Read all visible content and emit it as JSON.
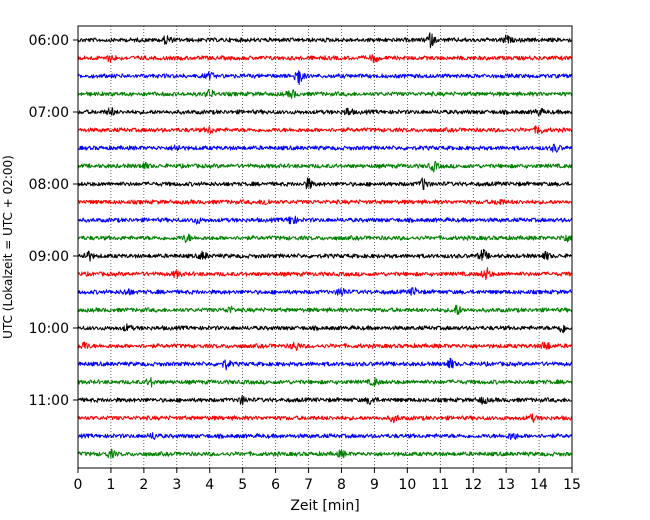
{
  "chart_data": {
    "type": "line",
    "title": "",
    "xlabel": "Zeit  [min]",
    "ylabel": "UTC (Lokalzeit = UTC + 02:00)",
    "xlim": [
      0,
      15
    ],
    "x_ticks": [
      "0",
      "1",
      "2",
      "3",
      "4",
      "5",
      "6",
      "7",
      "8",
      "9",
      "10",
      "11",
      "12",
      "13",
      "14",
      "15"
    ],
    "y_tick_labels": [
      "06:00",
      "07:00",
      "08:00",
      "09:00",
      "10:00",
      "11:00"
    ],
    "grid": "vertical dotted at each minute",
    "trace_interval_minutes": 15,
    "first_trace_utc": "06:00",
    "traces": [
      {
        "utc": "06:00",
        "color": "#000000",
        "bursts": [
          [
            2.7,
            1.2
          ],
          [
            10.7,
            1.8
          ],
          [
            13.0,
            1.0
          ]
        ]
      },
      {
        "utc": "06:15",
        "color": "#ff0000",
        "bursts": [
          [
            1.0,
            0.9
          ],
          [
            9.0,
            1.0
          ]
        ]
      },
      {
        "utc": "06:30",
        "color": "#0000ff",
        "bursts": [
          [
            6.7,
            2.6
          ],
          [
            4.0,
            0.8
          ]
        ]
      },
      {
        "utc": "06:45",
        "color": "#008000",
        "bursts": [
          [
            4.0,
            1.0
          ],
          [
            6.5,
            1.0
          ]
        ]
      },
      {
        "utc": "07:00",
        "color": "#000000",
        "bursts": [
          [
            1.0,
            1.0
          ],
          [
            8.2,
            1.0
          ],
          [
            14.0,
            0.8
          ]
        ]
      },
      {
        "utc": "07:15",
        "color": "#ff0000",
        "bursts": [
          [
            4.0,
            0.8
          ],
          [
            14.0,
            1.2
          ]
        ]
      },
      {
        "utc": "07:30",
        "color": "#0000ff",
        "bursts": [
          [
            3.0,
            0.8
          ],
          [
            14.5,
            1.0
          ]
        ]
      },
      {
        "utc": "07:45",
        "color": "#008000",
        "bursts": [
          [
            10.8,
            1.2
          ],
          [
            2.0,
            0.8
          ]
        ]
      },
      {
        "utc": "08:00",
        "color": "#000000",
        "bursts": [
          [
            7.0,
            1.4
          ],
          [
            10.5,
            1.6
          ]
        ]
      },
      {
        "utc": "08:15",
        "color": "#ff0000",
        "bursts": [
          [
            5.7,
            0.8
          ],
          [
            12.8,
            0.8
          ]
        ]
      },
      {
        "utc": "08:30",
        "color": "#0000ff",
        "bursts": [
          [
            6.5,
            1.4
          ],
          [
            3.6,
            0.8
          ]
        ]
      },
      {
        "utc": "08:45",
        "color": "#008000",
        "bursts": [
          [
            3.3,
            1.0
          ],
          [
            14.8,
            1.0
          ]
        ]
      },
      {
        "utc": "09:00",
        "color": "#000000",
        "bursts": [
          [
            0.3,
            1.4
          ],
          [
            3.8,
            1.0
          ],
          [
            12.3,
            1.6
          ],
          [
            14.2,
            1.0
          ]
        ]
      },
      {
        "utc": "09:15",
        "color": "#ff0000",
        "bursts": [
          [
            12.4,
            1.6
          ],
          [
            3.0,
            0.8
          ]
        ]
      },
      {
        "utc": "09:30",
        "color": "#0000ff",
        "bursts": [
          [
            8.0,
            1.2
          ],
          [
            10.2,
            1.0
          ],
          [
            1.5,
            0.8
          ]
        ]
      },
      {
        "utc": "09:45",
        "color": "#008000",
        "bursts": [
          [
            11.5,
            1.4
          ],
          [
            4.6,
            0.8
          ]
        ]
      },
      {
        "utc": "10:00",
        "color": "#000000",
        "bursts": [
          [
            14.7,
            1.2
          ],
          [
            1.5,
            0.8
          ]
        ]
      },
      {
        "utc": "10:15",
        "color": "#ff0000",
        "bursts": [
          [
            0.2,
            1.0
          ],
          [
            6.6,
            1.2
          ],
          [
            14.2,
            1.2
          ]
        ]
      },
      {
        "utc": "10:30",
        "color": "#0000ff",
        "bursts": [
          [
            4.5,
            1.2
          ],
          [
            11.3,
            1.4
          ]
        ]
      },
      {
        "utc": "10:45",
        "color": "#008000",
        "bursts": [
          [
            2.2,
            1.0
          ],
          [
            9.0,
            1.0
          ]
        ]
      },
      {
        "utc": "11:00",
        "color": "#000000",
        "bursts": [
          [
            5.0,
            1.0
          ],
          [
            8.9,
            1.2
          ],
          [
            12.3,
            0.9
          ]
        ]
      },
      {
        "utc": "11:15",
        "color": "#ff0000",
        "bursts": [
          [
            9.6,
            0.9
          ],
          [
            13.8,
            0.8
          ]
        ]
      },
      {
        "utc": "11:30",
        "color": "#0000ff",
        "bursts": [
          [
            2.3,
            0.8
          ],
          [
            13.2,
            1.0
          ]
        ]
      },
      {
        "utc": "11:45",
        "color": "#008000",
        "bursts": [
          [
            1.0,
            1.0
          ],
          [
            8.0,
            0.8
          ]
        ]
      }
    ]
  }
}
